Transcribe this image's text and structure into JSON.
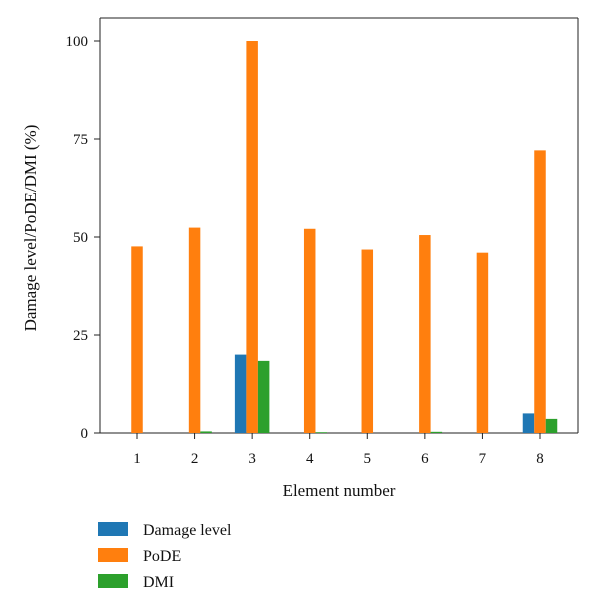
{
  "chart_data": {
    "type": "bar",
    "xlabel": "Element number",
    "ylabel": "Damage level/PoDE/DMI (%)",
    "categories": [
      "1",
      "2",
      "3",
      "4",
      "5",
      "6",
      "7",
      "8"
    ],
    "ylim": [
      0,
      100
    ],
    "yticks": [
      "0",
      "25",
      "50",
      "75",
      "100"
    ],
    "grid": false,
    "legend_position": "bottom-left",
    "series": [
      {
        "name": "Damage level",
        "color": "#1f77b4",
        "values": [
          0,
          0,
          20,
          0,
          0,
          0,
          0,
          5
        ]
      },
      {
        "name": "PoDE",
        "color": "#ff7f0e",
        "values": [
          47.6,
          52.4,
          100,
          52.1,
          46.8,
          50.5,
          46.0,
          72.1
        ]
      },
      {
        "name": "DMI",
        "color": "#2ca02c",
        "values": [
          0,
          0.4,
          18.4,
          0.2,
          0,
          0.3,
          0,
          3.6
        ]
      }
    ]
  }
}
